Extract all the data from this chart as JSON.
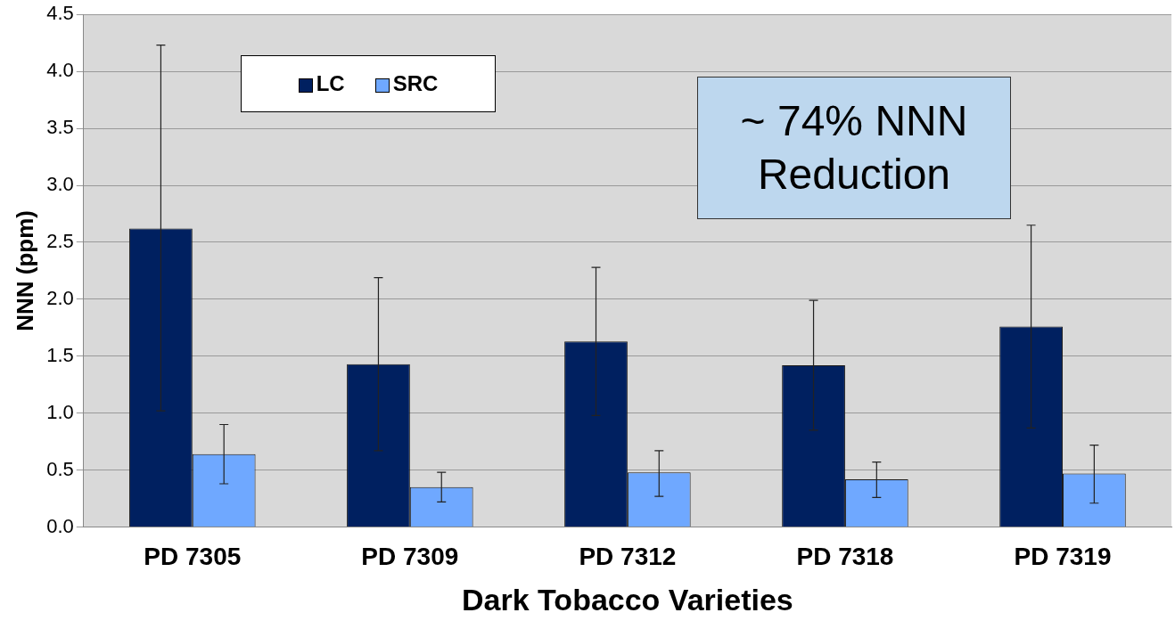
{
  "chart_data": {
    "type": "bar",
    "xlabel": "Dark Tobacco Varieties",
    "ylabel": "NNN (ppm)",
    "categories": [
      "PD 7305",
      "PD 7309",
      "PD 7312",
      "PD 7318",
      "PD 7319"
    ],
    "series": [
      {
        "name": "LC",
        "color": "#002060",
        "values": [
          2.62,
          1.43,
          1.63,
          1.42,
          1.76
        ],
        "errors": [
          [
            1.02,
            4.23
          ],
          [
            0.67,
            2.19
          ],
          [
            0.98,
            2.28
          ],
          [
            0.85,
            1.99
          ],
          [
            0.87,
            2.65
          ]
        ]
      },
      {
        "name": "SRC",
        "color": "#6fa8ff",
        "values": [
          0.64,
          0.35,
          0.48,
          0.42,
          0.47
        ],
        "errors": [
          [
            0.38,
            0.9
          ],
          [
            0.22,
            0.48
          ],
          [
            0.27,
            0.67
          ],
          [
            0.26,
            0.57
          ],
          [
            0.21,
            0.72
          ]
        ]
      }
    ],
    "ylim": [
      0,
      4.5
    ],
    "yticks": [
      {
        "value": 0,
        "label": "0.0"
      },
      {
        "value": 0.5,
        "label": "0.5"
      },
      {
        "value": 1,
        "label": "1.0"
      },
      {
        "value": 1.5,
        "label": "1.5"
      },
      {
        "value": 2,
        "label": "2.0"
      },
      {
        "value": 2.5,
        "label": "2.5"
      },
      {
        "value": 3,
        "label": "3.0"
      },
      {
        "value": 3.5,
        "label": "3.5"
      },
      {
        "value": 4,
        "label": "4.0"
      },
      {
        "value": 4.5,
        "label": "4.5"
      }
    ],
    "grid": "y",
    "legend": "top left",
    "annotations": [
      "~ 74% NNN Reduction"
    ]
  }
}
